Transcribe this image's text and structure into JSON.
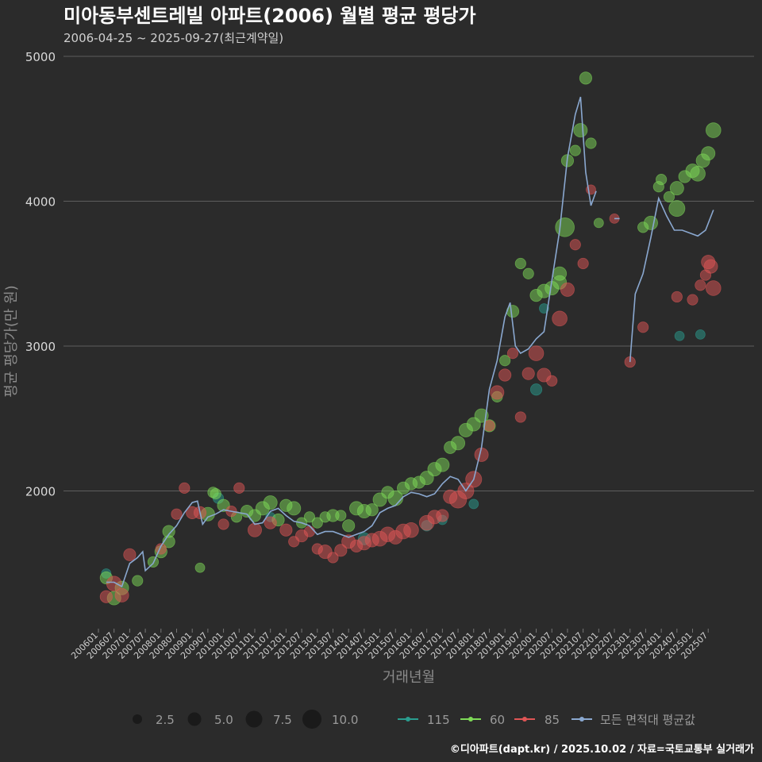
{
  "chart_data": {
    "type": "scatter",
    "title": "미아동부센트레빌 아파트(2006) 월별 평균 평당가",
    "subtitle": "2006-04-25 ~ 2025-09-27(최근계약일)",
    "xlabel": "거래년월",
    "ylabel": "평균 평당가(만 원)",
    "ylim": [
      1000,
      5000
    ],
    "yticks": [
      2000,
      3000,
      4000,
      5000
    ],
    "x_range": [
      "2006-01",
      "2025-12"
    ],
    "grid": true,
    "x_tick_labels": [
      "200601",
      "200607",
      "200701",
      "200707",
      "200801",
      "200807",
      "200901",
      "200907",
      "201001",
      "201007",
      "201101",
      "201107",
      "201201",
      "201207",
      "201301",
      "201307",
      "201401",
      "201407",
      "201501",
      "201507",
      "201601",
      "201607",
      "201701",
      "201707",
      "201801",
      "201807",
      "201901",
      "201907",
      "202001",
      "202007",
      "202101",
      "202107",
      "202201",
      "202207",
      "202301",
      "202307",
      "202401",
      "202407",
      "202501",
      "202507"
    ],
    "size_legend": {
      "values": [
        "2.5",
        "5.0",
        "7.5",
        "10.0"
      ]
    },
    "legend": [
      {
        "name": "115",
        "color": "#2a9d8f"
      },
      {
        "name": "60",
        "color": "#7ed957"
      },
      {
        "name": "85",
        "color": "#e05555"
      },
      {
        "name": "모든 면적대 평균값",
        "color": "#8aa8d0"
      }
    ],
    "avg_line_segments": [
      [
        [
          "2006-04",
          1370
        ],
        [
          "2006-07",
          1370
        ],
        [
          "2006-10",
          1340
        ],
        [
          "2007-01",
          1500
        ],
        [
          "2007-04",
          1540
        ],
        [
          "2007-06",
          1580
        ],
        [
          "2007-07",
          1450
        ],
        [
          "2007-10",
          1500
        ],
        [
          "2008-01",
          1620
        ],
        [
          "2008-04",
          1700
        ],
        [
          "2008-07",
          1760
        ],
        [
          "2008-10",
          1850
        ],
        [
          "2009-01",
          1920
        ],
        [
          "2009-03",
          1930
        ],
        [
          "2009-05",
          1770
        ],
        [
          "2009-07",
          1820
        ],
        [
          "2009-10",
          1840
        ],
        [
          "2010-01",
          1870
        ],
        [
          "2010-04",
          1860
        ],
        [
          "2010-07",
          1850
        ],
        [
          "2010-10",
          1840
        ],
        [
          "2011-01",
          1770
        ],
        [
          "2011-04",
          1780
        ],
        [
          "2011-07",
          1860
        ],
        [
          "2011-10",
          1880
        ],
        [
          "2012-01",
          1830
        ],
        [
          "2012-04",
          1790
        ],
        [
          "2012-07",
          1780
        ],
        [
          "2012-10",
          1760
        ],
        [
          "2013-01",
          1700
        ],
        [
          "2013-04",
          1720
        ],
        [
          "2013-07",
          1720
        ],
        [
          "2013-10",
          1700
        ],
        [
          "2014-01",
          1680
        ],
        [
          "2014-04",
          1700
        ],
        [
          "2014-07",
          1720
        ],
        [
          "2014-10",
          1760
        ],
        [
          "2015-01",
          1850
        ],
        [
          "2015-04",
          1880
        ],
        [
          "2015-07",
          1900
        ],
        [
          "2015-10",
          1960
        ],
        [
          "2016-01",
          1990
        ],
        [
          "2016-04",
          1980
        ],
        [
          "2016-07",
          1960
        ],
        [
          "2016-10",
          1980
        ],
        [
          "2017-01",
          2050
        ],
        [
          "2017-04",
          2100
        ],
        [
          "2017-07",
          2080
        ],
        [
          "2017-10",
          2000
        ],
        [
          "2018-01",
          2080
        ],
        [
          "2018-04",
          2300
        ],
        [
          "2018-07",
          2700
        ],
        [
          "2018-10",
          2900
        ],
        [
          "2019-01",
          3200
        ],
        [
          "2019-03",
          3300
        ],
        [
          "2019-05",
          3000
        ],
        [
          "2019-07",
          2950
        ],
        [
          "2019-10",
          2980
        ],
        [
          "2020-01",
          3050
        ],
        [
          "2020-04",
          3100
        ],
        [
          "2020-07",
          3450
        ],
        [
          "2020-10",
          3800
        ],
        [
          "2021-01",
          4300
        ],
        [
          "2021-04",
          4600
        ],
        [
          "2021-06",
          4720
        ],
        [
          "2021-08",
          4200
        ],
        [
          "2021-10",
          3970
        ],
        [
          "2021-12",
          4070
        ]
      ],
      [
        [
          "2022-07",
          3880
        ],
        [
          "2022-09",
          3880
        ]
      ],
      [
        [
          "2023-01",
          2890
        ],
        [
          "2023-03",
          3360
        ],
        [
          "2023-06",
          3500
        ],
        [
          "2023-09",
          3750
        ],
        [
          "2023-12",
          4020
        ],
        [
          "2024-03",
          3900
        ],
        [
          "2024-06",
          3800
        ],
        [
          "2024-09",
          3800
        ],
        [
          "2024-12",
          3780
        ],
        [
          "2025-03",
          3760
        ],
        [
          "2025-06",
          3800
        ],
        [
          "2025-09",
          3940
        ]
      ]
    ],
    "series": [
      {
        "name": "115",
        "points": [
          [
            "2006-04",
            1430,
            1.5
          ],
          [
            "2009-11",
            1950,
            2
          ],
          [
            "2011-07",
            1820,
            1.5
          ],
          [
            "2014-07",
            1670,
            3
          ],
          [
            "2016-07",
            1760,
            2
          ],
          [
            "2017-01",
            1800,
            1.5
          ],
          [
            "2018-01",
            1910,
            1.5
          ],
          [
            "2020-01",
            2700,
            2.5
          ],
          [
            "2020-04",
            3260,
            1.5
          ],
          [
            "2024-08",
            3070,
            1.5
          ],
          [
            "2025-04",
            3080,
            1.5
          ]
        ]
      },
      {
        "name": "60",
        "points": [
          [
            "2006-04",
            1400,
            3
          ],
          [
            "2006-07",
            1260,
            4
          ],
          [
            "2006-10",
            1330,
            4
          ],
          [
            "2007-04",
            1380,
            2
          ],
          [
            "2007-10",
            1510,
            2
          ],
          [
            "2008-01",
            1580,
            3
          ],
          [
            "2008-04",
            1650,
            3
          ],
          [
            "2008-04",
            1720,
            3
          ],
          [
            "2009-04",
            1470,
            1.5
          ],
          [
            "2009-07",
            1840,
            4
          ],
          [
            "2009-09",
            1990,
            2
          ],
          [
            "2009-10",
            1980,
            2
          ],
          [
            "2010-01",
            1900,
            3
          ],
          [
            "2010-06",
            1820,
            2
          ],
          [
            "2010-10",
            1860,
            3
          ],
          [
            "2011-01",
            1830,
            3
          ],
          [
            "2011-04",
            1880,
            4
          ],
          [
            "2011-07",
            1920,
            4
          ],
          [
            "2011-10",
            1800,
            3
          ],
          [
            "2012-01",
            1900,
            3
          ],
          [
            "2012-04",
            1880,
            4
          ],
          [
            "2012-07",
            1780,
            2
          ],
          [
            "2012-10",
            1820,
            2
          ],
          [
            "2013-01",
            1780,
            2
          ],
          [
            "2013-04",
            1820,
            2
          ],
          [
            "2013-07",
            1830,
            3
          ],
          [
            "2013-10",
            1830,
            2
          ],
          [
            "2014-01",
            1760,
            3
          ],
          [
            "2014-04",
            1880,
            4
          ],
          [
            "2014-07",
            1860,
            4
          ],
          [
            "2014-10",
            1870,
            3
          ],
          [
            "2015-01",
            1940,
            4
          ],
          [
            "2015-04",
            1990,
            3
          ],
          [
            "2015-07",
            1950,
            5
          ],
          [
            "2015-10",
            2020,
            3
          ],
          [
            "2016-01",
            2050,
            3
          ],
          [
            "2016-04",
            2060,
            3
          ],
          [
            "2016-07",
            2090,
            4
          ],
          [
            "2016-10",
            2150,
            4
          ],
          [
            "2017-01",
            2180,
            4
          ],
          [
            "2017-04",
            2300,
            3
          ],
          [
            "2017-07",
            2330,
            4
          ],
          [
            "2017-10",
            2420,
            4
          ],
          [
            "2018-01",
            2460,
            4
          ],
          [
            "2018-04",
            2520,
            4
          ],
          [
            "2018-07",
            2450,
            3
          ],
          [
            "2018-10",
            2650,
            2
          ],
          [
            "2019-01",
            2900,
            2
          ],
          [
            "2019-04",
            3240,
            3
          ],
          [
            "2019-07",
            3570,
            2
          ],
          [
            "2019-10",
            3500,
            2
          ],
          [
            "2020-01",
            3350,
            3
          ],
          [
            "2020-04",
            3380,
            4
          ],
          [
            "2020-07",
            3400,
            4
          ],
          [
            "2020-10",
            3500,
            4
          ],
          [
            "2020-10",
            3440,
            4
          ],
          [
            "2020-12",
            3820,
            9
          ],
          [
            "2021-01",
            4280,
            3
          ],
          [
            "2021-04",
            4350,
            2
          ],
          [
            "2021-06",
            4490,
            4
          ],
          [
            "2021-08",
            4850,
            3
          ],
          [
            "2021-10",
            4400,
            2
          ],
          [
            "2022-01",
            3850,
            1.5
          ],
          [
            "2023-06",
            3820,
            2
          ],
          [
            "2023-09",
            3850,
            4
          ],
          [
            "2023-12",
            4100,
            2
          ],
          [
            "2024-01",
            4150,
            2
          ],
          [
            "2024-04",
            4030,
            2
          ],
          [
            "2024-07",
            3950,
            6
          ],
          [
            "2024-07",
            4090,
            4
          ],
          [
            "2024-10",
            4170,
            3
          ],
          [
            "2025-01",
            4210,
            4
          ],
          [
            "2025-03",
            4190,
            5
          ],
          [
            "2025-05",
            4280,
            4
          ],
          [
            "2025-07",
            4330,
            4
          ],
          [
            "2025-09",
            4490,
            5
          ]
        ]
      },
      {
        "name": "85",
        "points": [
          [
            "2006-04",
            1270,
            3
          ],
          [
            "2006-07",
            1360,
            5
          ],
          [
            "2006-10",
            1280,
            4
          ],
          [
            "2007-01",
            1560,
            3
          ],
          [
            "2008-01",
            1600,
            2
          ],
          [
            "2008-07",
            1840,
            2
          ],
          [
            "2008-10",
            2020,
            2
          ],
          [
            "2009-01",
            1850,
            3
          ],
          [
            "2009-04",
            1850,
            3
          ],
          [
            "2010-01",
            1770,
            2
          ],
          [
            "2010-04",
            1860,
            2
          ],
          [
            "2010-07",
            2020,
            2
          ],
          [
            "2011-01",
            1730,
            4
          ],
          [
            "2011-07",
            1780,
            3
          ],
          [
            "2012-01",
            1730,
            3
          ],
          [
            "2012-04",
            1650,
            2
          ],
          [
            "2012-07",
            1690,
            3
          ],
          [
            "2012-10",
            1720,
            2
          ],
          [
            "2013-01",
            1600,
            2
          ],
          [
            "2013-04",
            1580,
            4
          ],
          [
            "2013-07",
            1540,
            2
          ],
          [
            "2013-10",
            1590,
            3
          ],
          [
            "2014-01",
            1650,
            4
          ],
          [
            "2014-04",
            1620,
            3
          ],
          [
            "2014-07",
            1640,
            4
          ],
          [
            "2014-10",
            1660,
            4
          ],
          [
            "2015-01",
            1670,
            5
          ],
          [
            "2015-04",
            1700,
            5
          ],
          [
            "2015-07",
            1680,
            4
          ],
          [
            "2015-10",
            1720,
            5
          ],
          [
            "2016-01",
            1730,
            5
          ],
          [
            "2016-07",
            1780,
            5
          ],
          [
            "2016-10",
            1820,
            4
          ],
          [
            "2017-01",
            1830,
            3
          ],
          [
            "2017-04",
            1960,
            4
          ],
          [
            "2017-07",
            1940,
            7
          ],
          [
            "2017-10",
            2000,
            6
          ],
          [
            "2018-01",
            2080,
            6
          ],
          [
            "2018-04",
            2250,
            4
          ],
          [
            "2018-07",
            2450,
            2
          ],
          [
            "2018-10",
            2680,
            4
          ],
          [
            "2019-01",
            2800,
            3
          ],
          [
            "2019-04",
            2950,
            2
          ],
          [
            "2019-07",
            2510,
            2
          ],
          [
            "2019-10",
            2810,
            3
          ],
          [
            "2020-01",
            2950,
            5
          ],
          [
            "2020-04",
            2800,
            4
          ],
          [
            "2020-07",
            2760,
            2
          ],
          [
            "2020-10",
            3190,
            5
          ],
          [
            "2021-01",
            3390,
            4
          ],
          [
            "2021-04",
            3700,
            2
          ],
          [
            "2021-07",
            3570,
            2
          ],
          [
            "2021-10",
            4080,
            1.5
          ],
          [
            "2022-07",
            3880,
            1.5
          ],
          [
            "2023-01",
            2890,
            2
          ],
          [
            "2023-06",
            3130,
            2
          ],
          [
            "2024-07",
            3340,
            2
          ],
          [
            "2025-01",
            3320,
            2
          ],
          [
            "2025-04",
            3420,
            2
          ],
          [
            "2025-06",
            3490,
            2
          ],
          [
            "2025-07",
            3580,
            4
          ],
          [
            "2025-08",
            3550,
            4
          ],
          [
            "2025-09",
            3400,
            5
          ]
        ]
      }
    ],
    "caption": "©디아파트(dapt.kr) / 2025.10.02 / 자료=국토교통부 실거래가"
  }
}
